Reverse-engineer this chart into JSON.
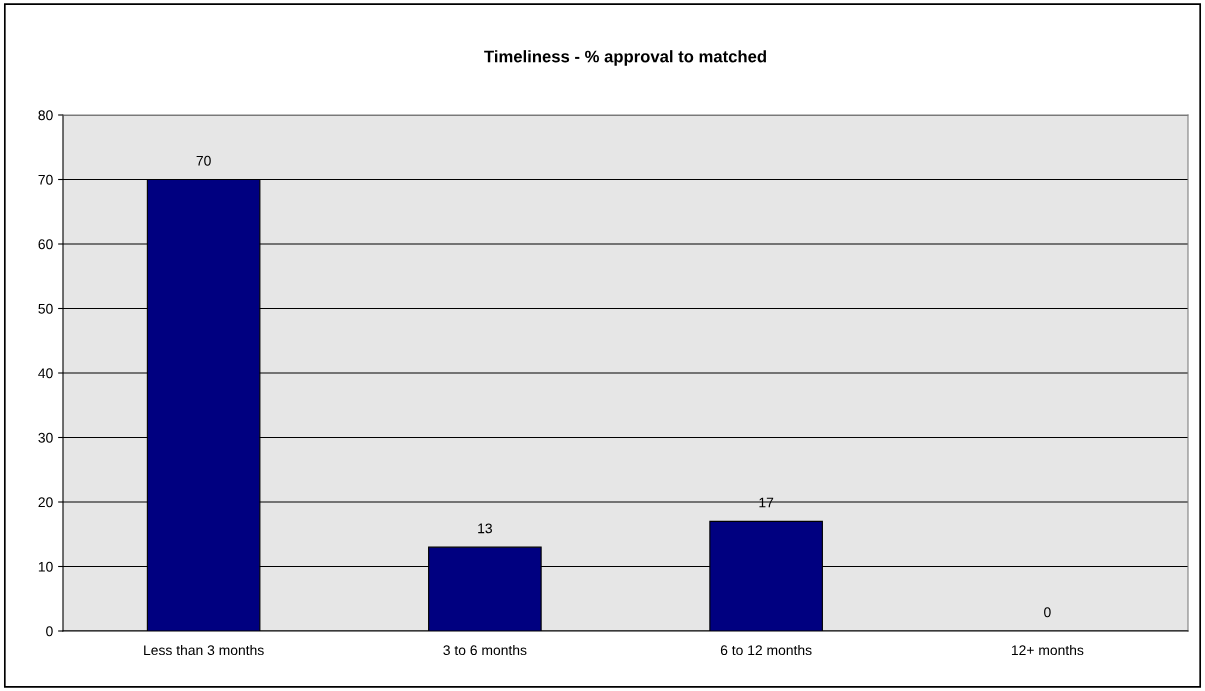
{
  "chart_data": {
    "type": "bar",
    "title": "Timeliness - % approval to matched",
    "categories": [
      "Less than 3 months",
      "3 to 6 months",
      "6 to 12 months",
      "12+ months"
    ],
    "values": [
      70,
      13,
      17,
      0
    ],
    "color": "#000080",
    "ylim": [
      0,
      80
    ],
    "yticks": [
      0,
      10,
      20,
      30,
      40,
      50,
      60,
      70,
      80
    ],
    "grid": "y",
    "data_labels": true
  }
}
